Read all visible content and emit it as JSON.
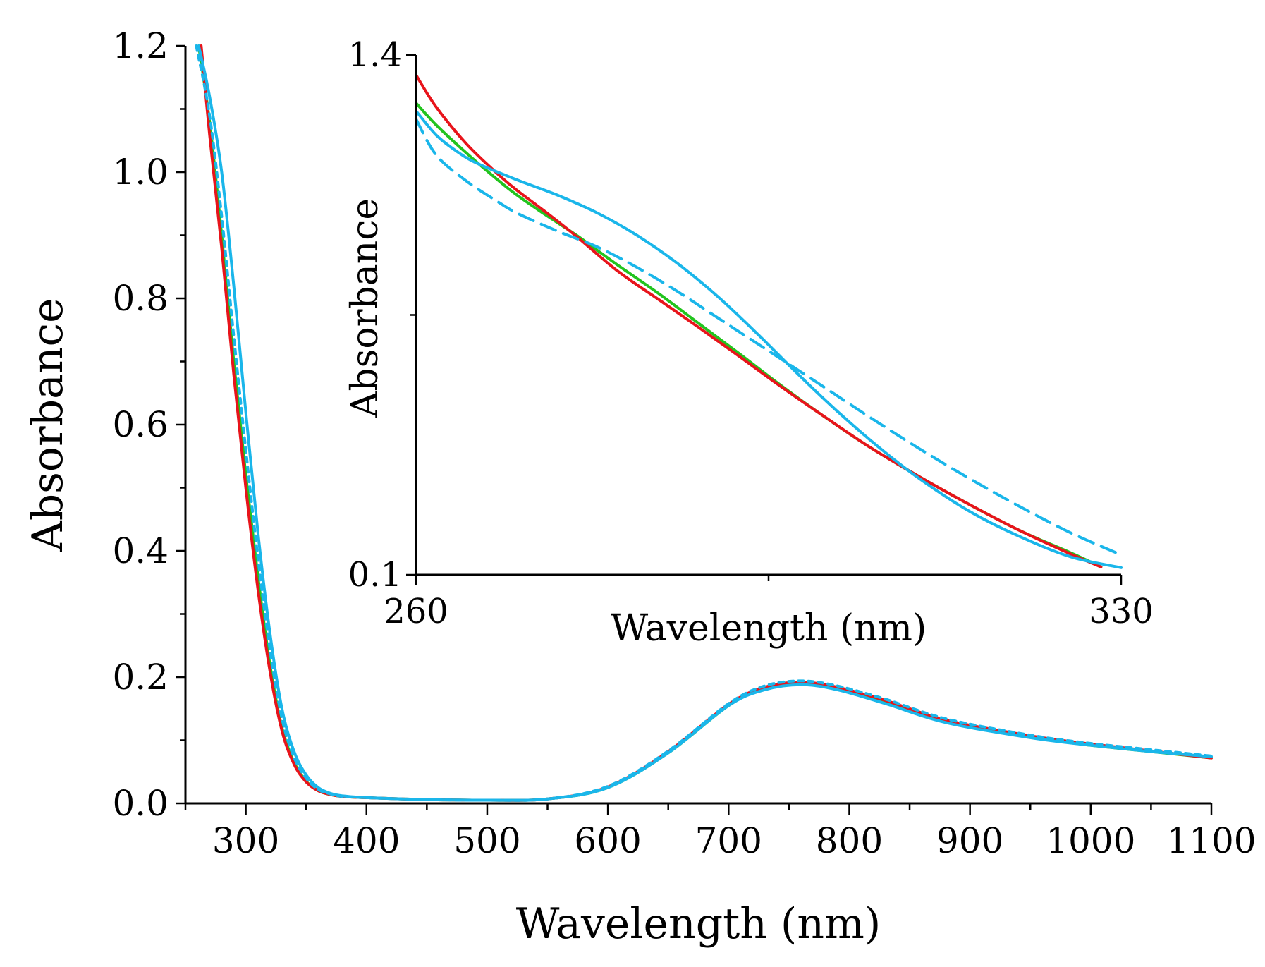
{
  "chart_data": [
    {
      "type": "line",
      "name": "main",
      "xlabel": "Wavelength (nm)",
      "ylabel": "Absorbance",
      "xlim": [
        250,
        1100
      ],
      "ylim": [
        0.0,
        1.2
      ],
      "xticks": [
        300,
        400,
        500,
        600,
        700,
        800,
        900,
        1000,
        1100
      ],
      "xtick_labels": [
        "300",
        "400",
        "500",
        "600",
        "700",
        "800",
        "900",
        "1000",
        "1100"
      ],
      "yticks": [
        0.0,
        0.2,
        0.4,
        0.6,
        0.8,
        1.0,
        1.2
      ],
      "ytick_labels": [
        "0.0",
        "0.2",
        "0.4",
        "0.6",
        "0.8",
        "1.0",
        "1.2"
      ],
      "x_minor_step": 50,
      "y_minor_step": 0.1,
      "series": [
        {
          "name": "green",
          "color": "#22c41e",
          "dash": "solid",
          "x": [
            261,
            270,
            280,
            290,
            300,
            310,
            320,
            330,
            340,
            350,
            360,
            370,
            380,
            400,
            450,
            500,
            550,
            600,
            650,
            700,
            730,
            760,
            790,
            830,
            880,
            950,
            1000,
            1050,
            1100
          ],
          "y": [
            1.2,
            1.08,
            0.9,
            0.7,
            0.52,
            0.36,
            0.22,
            0.12,
            0.065,
            0.035,
            0.02,
            0.014,
            0.011,
            0.009,
            0.006,
            0.005,
            0.007,
            0.025,
            0.08,
            0.155,
            0.182,
            0.19,
            0.182,
            0.16,
            0.13,
            0.105,
            0.092,
            0.082,
            0.072
          ]
        },
        {
          "name": "red",
          "color": "#e8141b",
          "dash": "solid",
          "x": [
            263,
            270,
            280,
            290,
            300,
            310,
            320,
            330,
            340,
            350,
            360,
            370,
            380,
            400,
            450,
            500,
            550,
            600,
            650,
            700,
            730,
            760,
            790,
            830,
            880,
            950,
            1000,
            1050,
            1100
          ],
          "y": [
            1.2,
            1.06,
            0.88,
            0.68,
            0.5,
            0.34,
            0.21,
            0.115,
            0.062,
            0.034,
            0.02,
            0.014,
            0.011,
            0.009,
            0.006,
            0.005,
            0.007,
            0.026,
            0.082,
            0.157,
            0.184,
            0.192,
            0.184,
            0.163,
            0.132,
            0.107,
            0.094,
            0.083,
            0.072
          ]
        },
        {
          "name": "blue-solid",
          "color": "#1ab6ea",
          "dash": "solid",
          "x": [
            261,
            270,
            280,
            290,
            300,
            310,
            320,
            330,
            340,
            350,
            360,
            370,
            380,
            400,
            450,
            500,
            550,
            600,
            650,
            700,
            730,
            760,
            790,
            830,
            880,
            950,
            1000,
            1050,
            1100
          ],
          "y": [
            1.2,
            1.12,
            1.0,
            0.82,
            0.62,
            0.43,
            0.27,
            0.15,
            0.082,
            0.045,
            0.025,
            0.016,
            0.012,
            0.009,
            0.006,
            0.005,
            0.007,
            0.025,
            0.08,
            0.155,
            0.18,
            0.188,
            0.18,
            0.158,
            0.128,
            0.104,
            0.092,
            0.082,
            0.074
          ]
        },
        {
          "name": "blue-dashed",
          "color": "#1ab6ea",
          "dash": "dashed",
          "x": [
            259,
            270,
            280,
            290,
            300,
            310,
            320,
            330,
            340,
            350,
            360,
            370,
            380,
            400,
            450,
            500,
            550,
            600,
            650,
            700,
            730,
            760,
            790,
            830,
            880,
            950,
            1000,
            1050,
            1100
          ],
          "y": [
            1.2,
            1.09,
            0.93,
            0.74,
            0.56,
            0.39,
            0.245,
            0.135,
            0.073,
            0.04,
            0.022,
            0.015,
            0.011,
            0.009,
            0.006,
            0.005,
            0.007,
            0.027,
            0.083,
            0.158,
            0.186,
            0.194,
            0.186,
            0.165,
            0.134,
            0.108,
            0.095,
            0.085,
            0.075
          ]
        }
      ]
    },
    {
      "type": "line",
      "name": "inset",
      "xlabel": "Wavelength (nm)",
      "ylabel": "Absorbance",
      "xlim": [
        260,
        330
      ],
      "ylim": [
        0.1,
        1.4
      ],
      "xticks": [
        260,
        330
      ],
      "xtick_labels": [
        "260",
        "330"
      ],
      "x_minor_ticks": [
        295
      ],
      "yticks": [
        0.1,
        1.4
      ],
      "ytick_labels": [
        "0.1",
        "1.4"
      ],
      "y_minor_ticks": [
        0.75
      ],
      "series": [
        {
          "name": "green",
          "color": "#22c41e",
          "dash": "solid",
          "x": [
            260,
            262,
            265,
            268,
            270,
            273,
            276,
            280,
            284,
            288,
            292,
            296,
            300,
            305,
            310,
            315,
            320,
            325,
            328
          ],
          "y": [
            1.28,
            1.225,
            1.155,
            1.09,
            1.05,
            0.998,
            0.948,
            0.875,
            0.805,
            0.73,
            0.655,
            0.578,
            0.505,
            0.42,
            0.345,
            0.275,
            0.21,
            0.155,
            0.12
          ]
        },
        {
          "name": "red",
          "color": "#e8141b",
          "dash": "solid",
          "x": [
            260,
            262,
            265,
            268,
            270,
            273,
            276,
            280,
            284,
            288,
            292,
            296,
            300,
            305,
            310,
            315,
            320,
            325,
            328
          ],
          "y": [
            1.35,
            1.27,
            1.178,
            1.105,
            1.062,
            1.005,
            0.945,
            0.86,
            0.79,
            0.72,
            0.648,
            0.575,
            0.505,
            0.42,
            0.345,
            0.275,
            0.21,
            0.152,
            0.12
          ]
        },
        {
          "name": "blue-solid",
          "color": "#1ab6ea",
          "dash": "solid",
          "x": [
            260,
            262,
            264,
            266,
            270,
            274,
            278,
            282,
            286,
            290,
            294,
            298,
            302,
            306,
            310,
            315,
            320,
            325,
            330
          ],
          "y": [
            1.26,
            1.2,
            1.16,
            1.13,
            1.088,
            1.05,
            1.005,
            0.948,
            0.878,
            0.795,
            0.7,
            0.6,
            0.505,
            0.418,
            0.34,
            0.258,
            0.195,
            0.145,
            0.118
          ]
        },
        {
          "name": "blue-dashed",
          "color": "#1ab6ea",
          "dash": "dashed",
          "x": [
            260,
            262,
            265,
            268,
            270,
            274,
            278,
            282,
            286,
            290,
            295,
            300,
            305,
            310,
            315,
            320,
            325,
            330
          ],
          "y": [
            1.24,
            1.15,
            1.085,
            1.035,
            1.005,
            0.96,
            0.92,
            0.868,
            0.808,
            0.742,
            0.66,
            0.578,
            0.495,
            0.415,
            0.34,
            0.27,
            0.205,
            0.15
          ]
        }
      ]
    }
  ]
}
